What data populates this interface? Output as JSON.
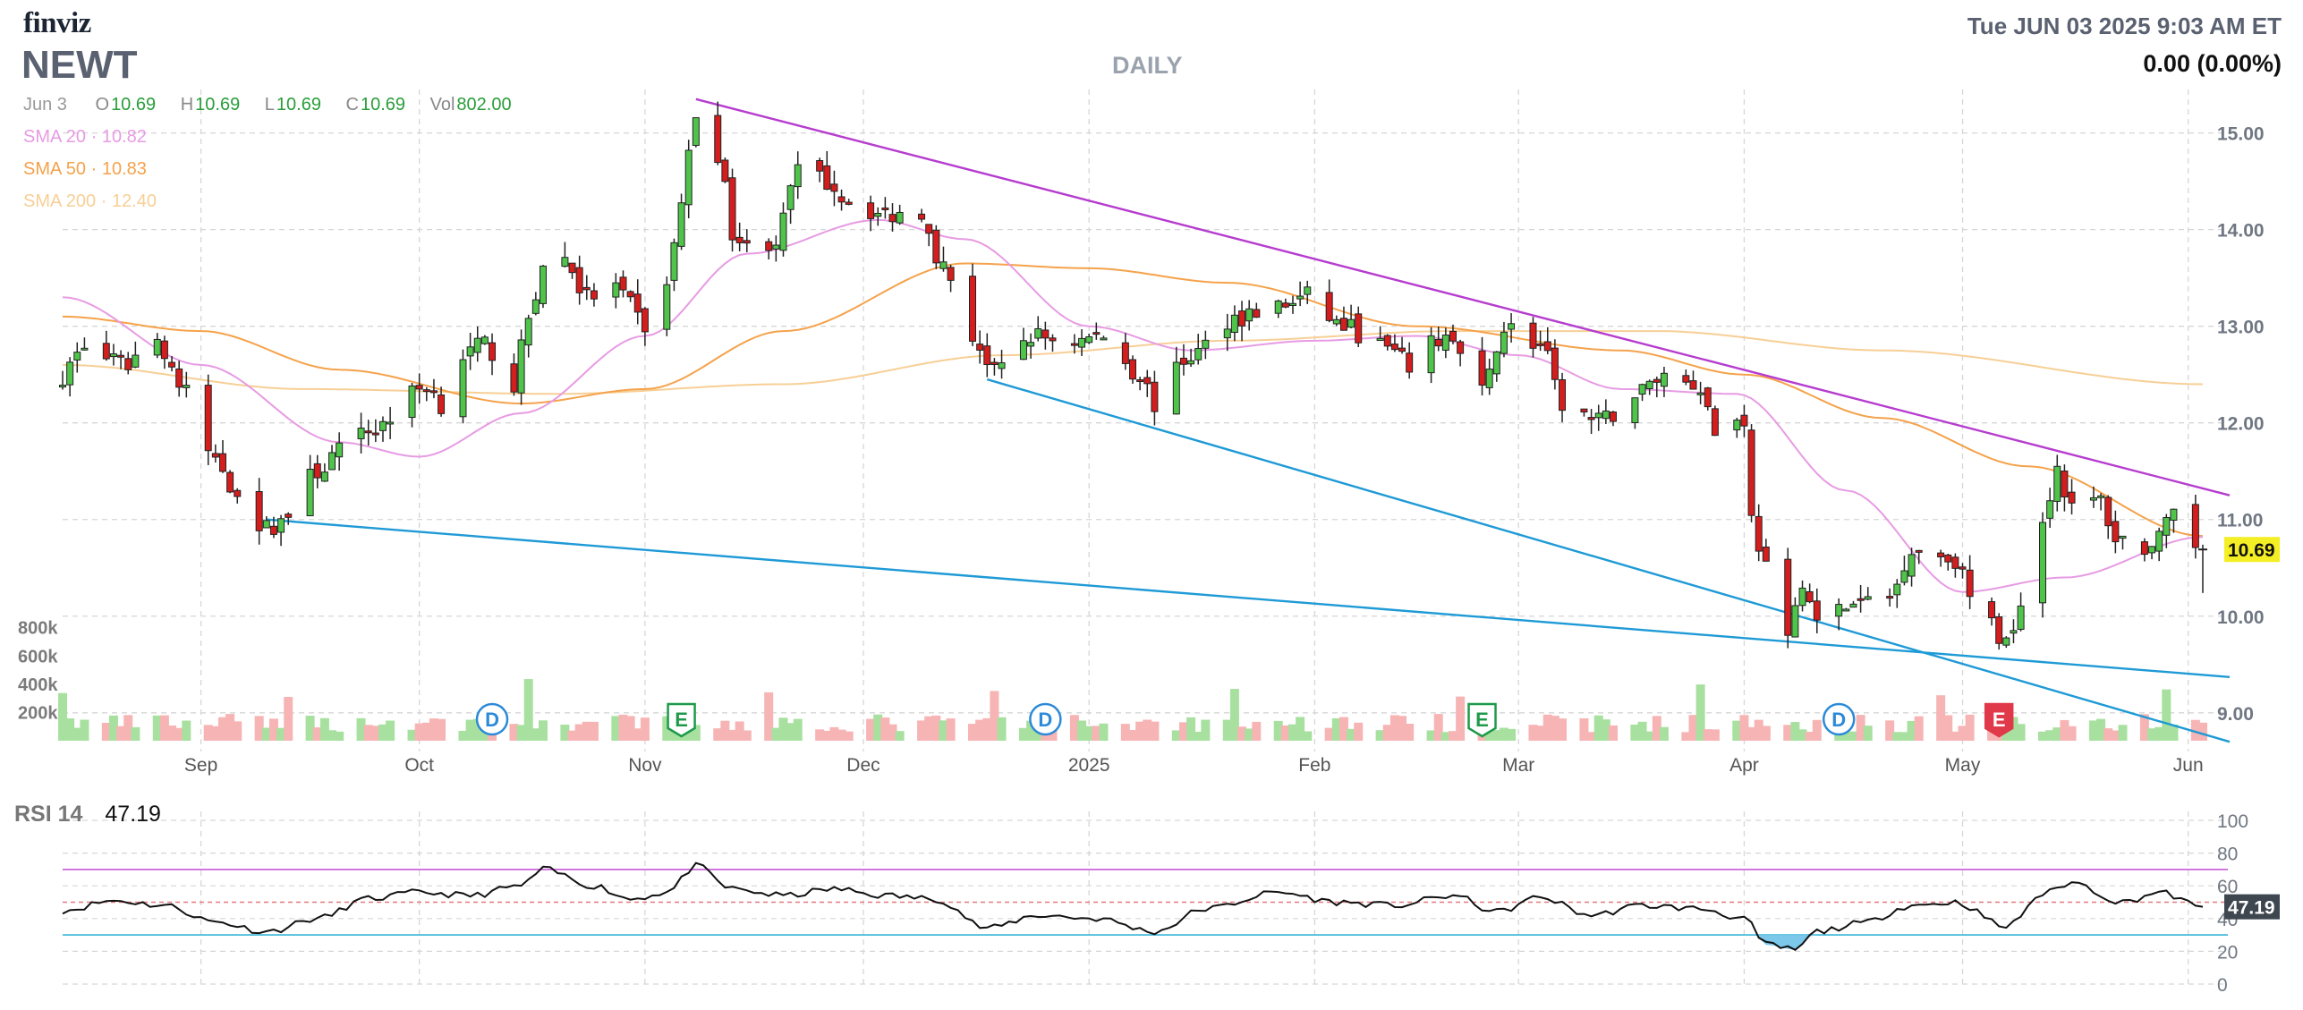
{
  "header": {
    "logo": "finviz",
    "ticker": "NEWT",
    "period": "DAILY",
    "datetime": "Tue JUN 03 2025 9:03 AM ET",
    "change": "0.00 (0.00%)"
  },
  "ohlc": {
    "date": "Jun 3",
    "open_label": "O",
    "open": "10.69",
    "high_label": "H",
    "high": "10.69",
    "low_label": "L",
    "low": "10.69",
    "close_label": "C",
    "close": "10.69",
    "vol_label": "Vol",
    "vol": "802.00"
  },
  "sma": [
    {
      "label": "SMA 20",
      "value": "10.82",
      "color": "#e79be3"
    },
    {
      "label": "SMA 50",
      "value": "10.83",
      "color": "#f5a24b"
    },
    {
      "label": "SMA 200",
      "value": "12.40",
      "color": "#f7cf96"
    }
  ],
  "colors": {
    "up": "#4fc34a",
    "down": "#d41e1e",
    "vol_up": "#a8e0a0",
    "vol_down": "#f7b4b4",
    "trend_top": "#b63ccf",
    "trend_bottom": "#1e9ad6",
    "grid": "#d6d6d6",
    "price_badge": "#f4ef24",
    "rsi_line": "#111111",
    "rsi_overbought": "#c85ad8",
    "rsi_oversold": "#37b6d6",
    "rsi_mid": "#e57a7a",
    "dividend": "#2c8ad8",
    "earnings": "#1e9a4a",
    "earnings_upcoming": "#e0394a"
  },
  "chart_data": [
    {
      "type": "candlestick",
      "title": "NEWT",
      "ylim": [
        8.6,
        15.45
      ],
      "y_ticks": [
        "15.00",
        "14.00",
        "13.00",
        "12.00",
        "11.00",
        "10.00",
        "9.00"
      ],
      "x_ticks": [
        "Sep",
        "Oct",
        "Nov",
        "Dec",
        "2025",
        "Feb",
        "Mar",
        "Apr",
        "May",
        "Jun"
      ],
      "x_range": [
        "2024-08-13",
        "2025-06-03"
      ],
      "grid": true,
      "last_price": "10.69",
      "volume": {
        "y_ticks": [
          "800k",
          "600k",
          "400k",
          "200k"
        ],
        "ylim": [
          0,
          950000
        ]
      },
      "series": [
        {
          "name": "Price",
          "kind": "ohlc",
          "anchors": [
            [
              "2024-08-13",
              12.5
            ],
            [
              "2024-08-16",
              12.8
            ],
            [
              "2024-08-21",
              12.6
            ],
            [
              "2024-08-26",
              12.85
            ],
            [
              "2024-08-30",
              12.3
            ],
            [
              "2024-09-03",
              11.6
            ],
            [
              "2024-09-06",
              11.3
            ],
            [
              "2024-09-10",
              10.9
            ],
            [
              "2024-09-13",
              11.05
            ],
            [
              "2024-09-17",
              11.5
            ],
            [
              "2024-09-20",
              11.7
            ],
            [
              "2024-09-25",
              11.95
            ],
            [
              "2024-09-30",
              12.3
            ],
            [
              "2024-10-02",
              12.4
            ],
            [
              "2024-10-04",
              12.2
            ],
            [
              "2024-10-07",
              12.7
            ],
            [
              "2024-10-10",
              12.8
            ],
            [
              "2024-10-14",
              12.4
            ],
            [
              "2024-10-16",
              13.1
            ],
            [
              "2024-10-18",
              13.6
            ],
            [
              "2024-10-21",
              13.7
            ],
            [
              "2024-10-24",
              13.3
            ],
            [
              "2024-10-28",
              13.4
            ],
            [
              "2024-10-30",
              13.2
            ],
            [
              "2024-11-01",
              13.0
            ],
            [
              "2024-11-04",
              13.4
            ],
            [
              "2024-11-06",
              14.3
            ],
            [
              "2024-11-08",
              15.2
            ],
            [
              "2024-11-11",
              14.8
            ],
            [
              "2024-11-13",
              14.0
            ],
            [
              "2024-11-15",
              13.8
            ],
            [
              "2024-11-19",
              13.9
            ],
            [
              "2024-11-22",
              14.6
            ],
            [
              "2024-11-26",
              14.5
            ],
            [
              "2024-11-29",
              14.3
            ],
            [
              "2024-12-04",
              14.15
            ],
            [
              "2024-12-09",
              14.2
            ],
            [
              "2024-12-12",
              13.6
            ],
            [
              "2024-12-16",
              12.9
            ],
            [
              "2024-12-19",
              12.5
            ],
            [
              "2024-12-24",
              12.9
            ],
            [
              "2024-12-30",
              12.85
            ],
            [
              "2025-01-03",
              12.9
            ],
            [
              "2025-01-08",
              12.5
            ],
            [
              "2025-01-10",
              12.2
            ],
            [
              "2025-01-15",
              12.7
            ],
            [
              "2025-01-21",
              13.1
            ],
            [
              "2025-01-27",
              13.2
            ],
            [
              "2025-01-31",
              13.3
            ],
            [
              "2025-02-05",
              13.0
            ],
            [
              "2025-02-10",
              12.8
            ],
            [
              "2025-02-14",
              12.6
            ],
            [
              "2025-02-19",
              12.9
            ],
            [
              "2025-02-24",
              12.3
            ],
            [
              "2025-02-27",
              13.0
            ],
            [
              "2025-03-04",
              12.8
            ],
            [
              "2025-03-07",
              12.2
            ],
            [
              "2025-03-12",
              12.0
            ],
            [
              "2025-03-17",
              12.3
            ],
            [
              "2025-03-21",
              12.5
            ],
            [
              "2025-03-26",
              12.4
            ],
            [
              "2025-03-28",
              11.9
            ],
            [
              "2025-04-01",
              12.05
            ],
            [
              "2025-04-02",
              11.0
            ],
            [
              "2025-04-04",
              10.5
            ],
            [
              "2025-04-07",
              9.7
            ],
            [
              "2025-04-09",
              10.4
            ],
            [
              "2025-04-11",
              9.9
            ],
            [
              "2025-04-15",
              10.1
            ],
            [
              "2025-04-21",
              10.2
            ],
            [
              "2025-04-24",
              10.7
            ],
            [
              "2025-04-30",
              10.6
            ],
            [
              "2025-05-02",
              10.2
            ],
            [
              "2025-05-05",
              9.9
            ],
            [
              "2025-05-07",
              9.7
            ],
            [
              "2025-05-09",
              10.2
            ],
            [
              "2025-05-12",
              11.0
            ],
            [
              "2025-05-14",
              11.55
            ],
            [
              "2025-05-16",
              11.1
            ],
            [
              "2025-05-20",
              11.2
            ],
            [
              "2025-05-22",
              10.8
            ],
            [
              "2025-05-27",
              10.7
            ],
            [
              "2025-05-30",
              11.0
            ],
            [
              "2025-06-03",
              10.69
            ]
          ]
        },
        {
          "name": "SMA 20",
          "anchors": [
            [
              "2024-08-13",
              13.3
            ],
            [
              "2024-09-01",
              12.6
            ],
            [
              "2024-09-20",
              11.8
            ],
            [
              "2024-10-01",
              11.65
            ],
            [
              "2024-10-15",
              12.1
            ],
            [
              "2024-11-01",
              12.9
            ],
            [
              "2024-11-15",
              13.75
            ],
            [
              "2024-12-03",
              14.1
            ],
            [
              "2024-12-15",
              13.9
            ],
            [
              "2025-01-01",
              13.0
            ],
            [
              "2025-01-15",
              12.75
            ],
            [
              "2025-02-01",
              12.85
            ],
            [
              "2025-02-15",
              12.9
            ],
            [
              "2025-03-01",
              12.7
            ],
            [
              "2025-03-15",
              12.35
            ],
            [
              "2025-03-31",
              12.3
            ],
            [
              "2025-04-15",
              11.3
            ],
            [
              "2025-05-01",
              10.25
            ],
            [
              "2025-05-15",
              10.4
            ],
            [
              "2025-06-03",
              10.82
            ]
          ]
        },
        {
          "name": "SMA 50",
          "anchors": [
            [
              "2024-08-13",
              13.1
            ],
            [
              "2024-09-01",
              12.95
            ],
            [
              "2024-09-20",
              12.55
            ],
            [
              "2024-10-15",
              12.2
            ],
            [
              "2024-11-01",
              12.35
            ],
            [
              "2024-11-20",
              12.95
            ],
            [
              "2024-12-15",
              13.65
            ],
            [
              "2025-01-01",
              13.6
            ],
            [
              "2025-01-20",
              13.45
            ],
            [
              "2025-02-15",
              13.0
            ],
            [
              "2025-03-15",
              12.75
            ],
            [
              "2025-04-01",
              12.5
            ],
            [
              "2025-04-20",
              12.05
            ],
            [
              "2025-05-10",
              11.55
            ],
            [
              "2025-06-03",
              10.83
            ]
          ]
        },
        {
          "name": "SMA 200",
          "anchors": [
            [
              "2024-08-13",
              12.6
            ],
            [
              "2024-09-15",
              12.35
            ],
            [
              "2024-10-20",
              12.3
            ],
            [
              "2024-11-20",
              12.4
            ],
            [
              "2024-12-20",
              12.7
            ],
            [
              "2025-01-20",
              12.85
            ],
            [
              "2025-02-20",
              12.95
            ],
            [
              "2025-03-20",
              12.95
            ],
            [
              "2025-04-20",
              12.75
            ],
            [
              "2025-06-03",
              12.4
            ]
          ]
        },
        {
          "name": "Resistance",
          "anchors": [
            [
              "2024-11-08",
              15.35
            ],
            [
              "2025-06-03",
              11.25
            ]
          ]
        },
        {
          "name": "Support (long)",
          "anchors": [
            [
              "2024-09-10",
              11.0
            ],
            [
              "2025-06-03",
              9.37
            ]
          ]
        },
        {
          "name": "Support (short)",
          "anchors": [
            [
              "2024-12-18",
              12.45
            ],
            [
              "2025-06-03",
              8.7
            ]
          ]
        }
      ],
      "events": [
        {
          "label": "D",
          "date": "2024-10-11"
        },
        {
          "label": "E",
          "date": "2024-11-06"
        },
        {
          "label": "D",
          "date": "2024-12-26"
        },
        {
          "label": "E",
          "date": "2025-02-24"
        },
        {
          "label": "D",
          "date": "2025-04-14"
        },
        {
          "label": "E",
          "date": "2025-05-06",
          "upcoming": true
        }
      ]
    },
    {
      "type": "line",
      "title": "RSI 14",
      "value": "47.19",
      "ylim": [
        0,
        100
      ],
      "y_ticks": [
        "100",
        "80",
        "60",
        "40",
        "20",
        "0"
      ],
      "levels": [
        70,
        50,
        30
      ],
      "series": [
        {
          "name": "RSI 14",
          "anchors": [
            [
              "2024-08-13",
              45
            ],
            [
              "2024-08-20",
              51
            ],
            [
              "2024-08-27",
              48
            ],
            [
              "2024-09-03",
              38
            ],
            [
              "2024-09-10",
              32
            ],
            [
              "2024-09-17",
              40
            ],
            [
              "2024-09-24",
              52
            ],
            [
              "2024-10-01",
              56
            ],
            [
              "2024-10-08",
              54
            ],
            [
              "2024-10-15",
              60
            ],
            [
              "2024-10-18",
              70
            ],
            [
              "2024-10-25",
              60
            ],
            [
              "2024-10-30",
              52
            ],
            [
              "2024-11-04",
              56
            ],
            [
              "2024-11-08",
              72
            ],
            [
              "2024-11-13",
              58
            ],
            [
              "2024-11-20",
              54
            ],
            [
              "2024-11-27",
              58
            ],
            [
              "2024-12-04",
              54
            ],
            [
              "2024-12-11",
              52
            ],
            [
              "2024-12-18",
              34
            ],
            [
              "2024-12-25",
              42
            ],
            [
              "2025-01-02",
              40
            ],
            [
              "2025-01-10",
              32
            ],
            [
              "2025-01-17",
              46
            ],
            [
              "2025-01-27",
              56
            ],
            [
              "2025-02-04",
              50
            ],
            [
              "2025-02-12",
              48
            ],
            [
              "2025-02-20",
              54
            ],
            [
              "2025-02-26",
              44
            ],
            [
              "2025-03-04",
              53
            ],
            [
              "2025-03-11",
              42
            ],
            [
              "2025-03-18",
              48
            ],
            [
              "2025-03-26",
              46
            ],
            [
              "2025-04-01",
              40
            ],
            [
              "2025-04-04",
              24
            ],
            [
              "2025-04-08",
              21
            ],
            [
              "2025-04-11",
              32
            ],
            [
              "2025-04-17",
              37
            ],
            [
              "2025-04-24",
              48
            ],
            [
              "2025-04-30",
              50
            ],
            [
              "2025-05-07",
              35
            ],
            [
              "2025-05-12",
              55
            ],
            [
              "2025-05-16",
              62
            ],
            [
              "2025-05-23",
              50
            ],
            [
              "2025-05-28",
              56
            ],
            [
              "2025-06-03",
              47.19
            ]
          ]
        }
      ]
    }
  ]
}
